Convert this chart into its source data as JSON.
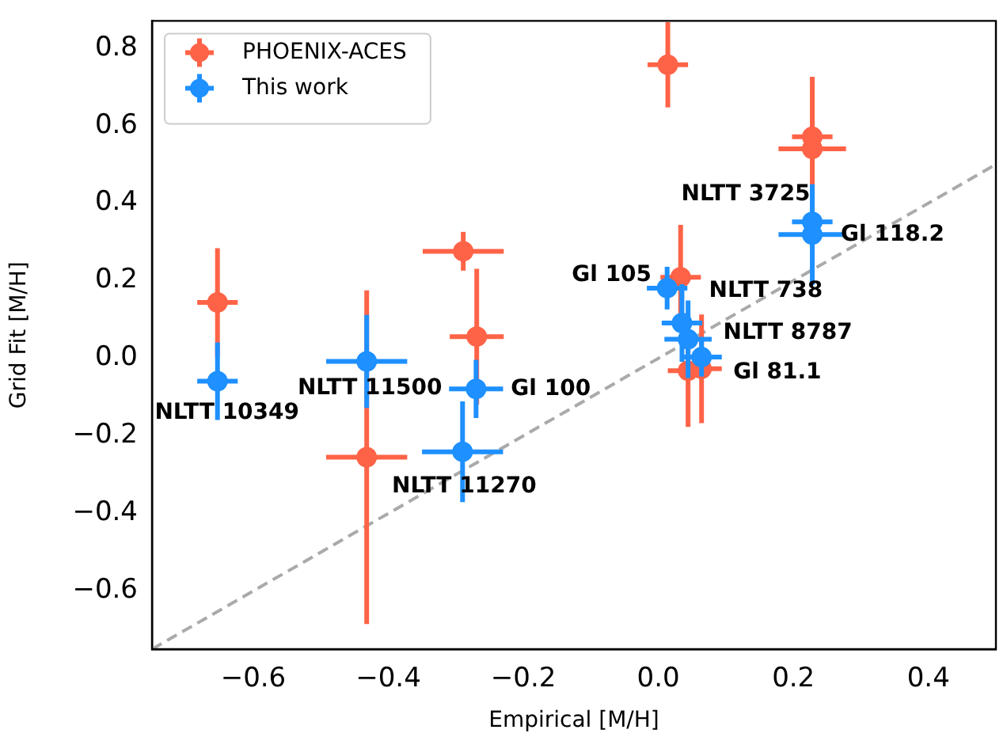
{
  "chart_data": {
    "type": "scatter",
    "xlabel": "Empirical [M/H]",
    "ylabel": "Grid Fit [M/H]",
    "xlim": [
      -0.75,
      0.5
    ],
    "ylim": [
      -0.75,
      0.87
    ],
    "xticks": [
      {
        "value": -0.6,
        "label": "−0.6"
      },
      {
        "value": -0.4,
        "label": "−0.4"
      },
      {
        "value": -0.2,
        "label": "−0.2"
      },
      {
        "value": 0,
        "label": "0.0"
      },
      {
        "value": 0.2,
        "label": "0.2"
      },
      {
        "value": 0.4,
        "label": "0.4"
      }
    ],
    "yticks": [
      {
        "value": -0.6,
        "label": "−0.6"
      },
      {
        "value": -0.4,
        "label": "−0.4"
      },
      {
        "value": -0.2,
        "label": "−0.2"
      },
      {
        "value": 0,
        "label": "0.0"
      },
      {
        "value": 0.2,
        "label": "0.2"
      },
      {
        "value": 0.4,
        "label": "0.4"
      },
      {
        "value": 0.6,
        "label": "0.6"
      },
      {
        "value": 0.8,
        "label": "0.8"
      }
    ],
    "grid": false,
    "legend": "top left",
    "marker": "circle",
    "series": [
      {
        "type": "line",
        "color": "#aaaaaa",
        "line_style": "dashed",
        "marker": "none",
        "x": [
          -0.75,
          0.5
        ],
        "values": [
          -0.75,
          0.5
        ]
      },
      {
        "name": "PHOENIX-ACES",
        "color": "#ff6347",
        "x": [
          -0.653,
          -0.289,
          -0.269,
          -0.432,
          0.014,
          0.228,
          0.228,
          0.033,
          0.044,
          0.064
        ],
        "values": [
          0.144,
          0.276,
          0.056,
          -0.255,
          0.757,
          0.571,
          0.54,
          0.209,
          -0.032,
          -0.027
        ],
        "errors": [
          0.14,
          0.05,
          0.175,
          0.43,
          0.11,
          0.155,
          0.155,
          0.135,
          0.145,
          0.14
        ],
        "xerrors": [
          0.03,
          0.06,
          0.04,
          0.06,
          0.03,
          0.03,
          0.05,
          0.03,
          0.03,
          0.03
        ]
      },
      {
        "name": "This work",
        "color": "#1e90ff",
        "x": [
          -0.653,
          -0.432,
          -0.27,
          -0.29,
          0.013,
          0.228,
          0.228,
          0.035,
          0.044,
          0.064
        ],
        "values": [
          -0.059,
          -0.008,
          -0.079,
          -0.241,
          0.181,
          0.352,
          0.319,
          0.091,
          0.049,
          0.003
        ],
        "errors": [
          0.1,
          0.12,
          0.075,
          0.13,
          0.055,
          0.02,
          0.13,
          0.1,
          0.1,
          0.05
        ],
        "xerrors": [
          0.03,
          0.06,
          0.04,
          0.06,
          0.03,
          0.03,
          0.05,
          0.03,
          0.035,
          0.03
        ]
      }
    ],
    "annotations": [
      {
        "text": "NLTT 10349",
        "x": -0.653,
        "y": -0.059
      },
      {
        "text": "NLTT 11500",
        "x": -0.432,
        "y": -0.008
      },
      {
        "text": "Gl 100",
        "x": -0.27,
        "y": -0.079
      },
      {
        "text": "NLTT 11270",
        "x": -0.29,
        "y": -0.241
      },
      {
        "text": "Gl 105",
        "x": 0.013,
        "y": 0.181
      },
      {
        "text": "NLTT 3725",
        "x": 0.228,
        "y": 0.352
      },
      {
        "text": "Gl 118.2",
        "x": 0.228,
        "y": 0.319
      },
      {
        "text": "NLTT 738",
        "x": 0.035,
        "y": 0.091
      },
      {
        "text": "NLTT 8787",
        "x": 0.044,
        "y": 0.049
      },
      {
        "text": "Gl 81.1",
        "x": 0.064,
        "y": 0.003
      }
    ]
  }
}
